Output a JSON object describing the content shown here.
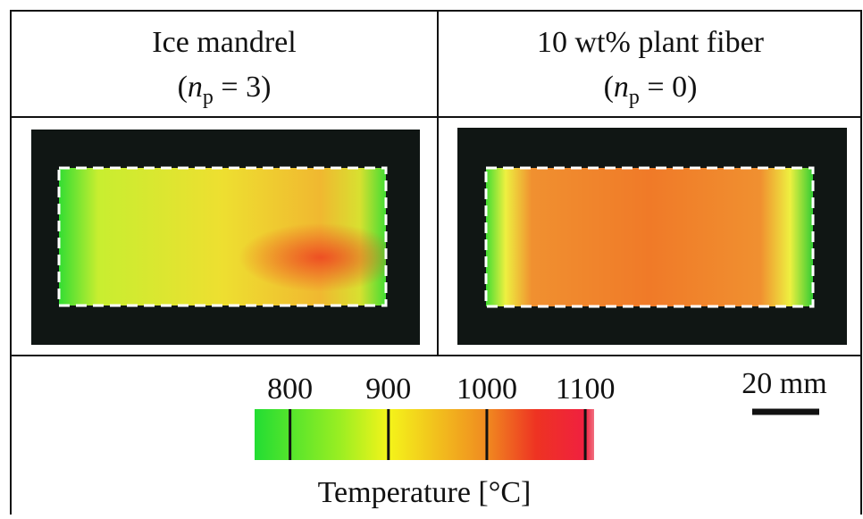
{
  "panels": [
    {
      "title": "Ice mandrel",
      "condition": {
        "open": "(",
        "var": "n",
        "sub": "p",
        "rest": " = 3)"
      }
    },
    {
      "title": "10 wt% plant fiber",
      "condition": {
        "open": "(",
        "var": "n",
        "sub": "p",
        "rest": " = 0)"
      }
    }
  ],
  "colorbar": {
    "range": [
      764,
      1109
    ],
    "ticks": [
      800,
      900,
      1000,
      1100
    ],
    "label": "Temperature [°C]",
    "colors": [
      [
        764,
        "#22dd33"
      ],
      [
        850,
        "#99ee22"
      ],
      [
        900,
        "#f4f41a"
      ],
      [
        1000,
        "#f08a20"
      ],
      [
        1050,
        "#ee3322"
      ],
      [
        1100,
        "#f02040"
      ],
      [
        1109,
        "#f07080"
      ]
    ]
  },
  "scale_bar": {
    "label": "20 mm"
  }
}
